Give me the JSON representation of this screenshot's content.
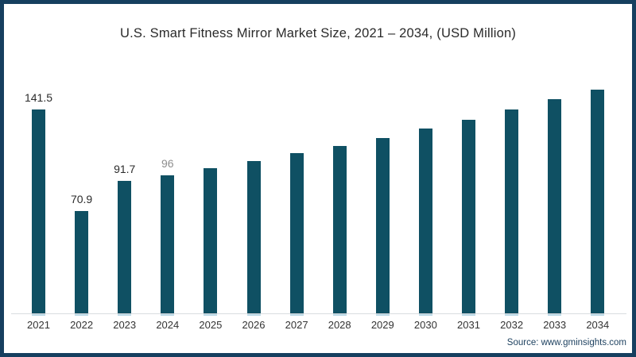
{
  "frame": {
    "border_color": "#163f5f",
    "background_color": "#ffffff"
  },
  "chart_data": {
    "type": "bar",
    "title": "U.S. Smart Fitness Mirror Market Size, 2021 – 2034, (USD Million)",
    "xlabel": "",
    "ylabel": "",
    "categories": [
      "2021",
      "2022",
      "2023",
      "2024",
      "2025",
      "2026",
      "2027",
      "2028",
      "2029",
      "2030",
      "2031",
      "2032",
      "2033",
      "2034"
    ],
    "values": [
      141.5,
      70.9,
      91.7,
      96,
      100.8,
      105.8,
      111.2,
      116.2,
      121.7,
      128.2,
      134.3,
      141.4,
      148.5,
      155.1
    ],
    "value_labels": [
      "141.5",
      "70.9",
      "91.7",
      "96",
      "",
      "",
      "",
      "",
      "",
      "",
      "",
      "",
      "",
      ""
    ],
    "value_label_colors": [
      "#2b2b2b",
      "#2b2b2b",
      "#2b2b2b",
      "#8e8e8e",
      "",
      "",
      "",
      "",
      "",
      "",
      "",
      "",
      "",
      ""
    ],
    "bar_color": "#0f5063",
    "axis_line_color": "#d9dde0",
    "under_bar_tick_color": "#b9d8e6",
    "category_label_color": "#333333",
    "title_color": "#2a2a2a",
    "ylim": [
      0,
      160
    ],
    "grid": false,
    "legend": false,
    "unit": "USD Million"
  },
  "footer": {
    "source": "Source: www.gminsights.com",
    "source_color": "#1b3f5e"
  }
}
